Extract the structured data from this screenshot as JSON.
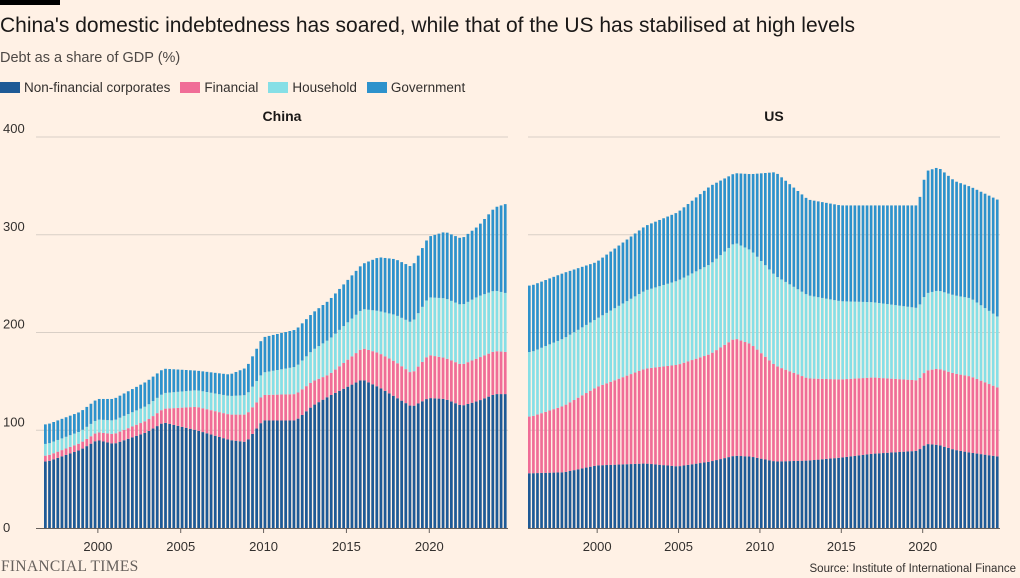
{
  "header": {
    "title": "China's domestic indebtedness has soared, while that of the US has stabilised at high levels",
    "subtitle": "Debt as a share of GDP (%)"
  },
  "legend": [
    {
      "label": "Non-financial corporates",
      "color": "#1e5a96"
    },
    {
      "label": "Financial",
      "color": "#f06d97"
    },
    {
      "label": "Household",
      "color": "#86dfe6"
    },
    {
      "label": "Government",
      "color": "#2d92cc"
    }
  ],
  "chart_data": [
    {
      "type": "bar",
      "stacked": true,
      "title": "China",
      "x_range": [
        1996.75,
        2024.75
      ],
      "ylim": [
        0,
        400
      ],
      "yticks": [
        0,
        100,
        200,
        300,
        400
      ],
      "xticks": [
        2000,
        2005,
        2010,
        2015,
        2020
      ],
      "grid": true,
      "series_order": [
        "Non-financial corporates",
        "Financial",
        "Household",
        "Government"
      ],
      "anchors": {
        "x": [
          1997,
          1999,
          2000,
          2001,
          2003,
          2004,
          2006,
          2008,
          2009,
          2010,
          2012,
          2013,
          2014,
          2016,
          2017,
          2018,
          2019,
          2020,
          2021,
          2022,
          2023,
          2024,
          2024.75
        ],
        "Non-financial corporates": [
          68,
          80,
          90,
          86,
          98,
          108,
          100,
          90,
          88,
          110,
          110,
          125,
          135,
          152,
          144,
          134,
          124,
          133,
          132,
          125,
          130,
          137,
          137
        ],
        "Financial": [
          6,
          7,
          8,
          10,
          12,
          14,
          24,
          26,
          28,
          26,
          27,
          25,
          22,
          32,
          35,
          36,
          34,
          44,
          42,
          42,
          44,
          44,
          43
        ],
        "Household": [
          12,
          12,
          13,
          14,
          15,
          16,
          17,
          19,
          20,
          23,
          28,
          32,
          36,
          40,
          43,
          48,
          52,
          59,
          61,
          61,
          63,
          62,
          60
        ],
        "Government": [
          20,
          20,
          21,
          22,
          25,
          25,
          20,
          22,
          28,
          36,
          38,
          38,
          40,
          46,
          55,
          57,
          57,
          62,
          68,
          68,
          72,
          85,
          92
        ]
      }
    },
    {
      "type": "bar",
      "stacked": true,
      "title": "US",
      "x_range": [
        1995.75,
        2024.75
      ],
      "ylim": [
        0,
        400
      ],
      "xticks": [
        2000,
        2005,
        2010,
        2015,
        2020
      ],
      "grid": true,
      "series_order": [
        "Non-financial corporates",
        "Financial",
        "Household",
        "Government"
      ],
      "anchors": {
        "x": [
          1996,
          1998,
          2000,
          2003,
          2005,
          2007,
          2008.5,
          2009.5,
          2011,
          2013,
          2015,
          2017,
          2019.75,
          2020.25,
          2021,
          2022,
          2023,
          2024.75
        ],
        "Non-financial corporates": [
          56,
          57,
          64,
          66,
          63,
          68,
          74,
          73,
          68,
          69,
          72,
          76,
          79,
          86,
          85,
          80,
          77,
          73
        ],
        "Financial": [
          58,
          68,
          80,
          97,
          104,
          110,
          120,
          115,
          98,
          84,
          80,
          78,
          72,
          75,
          78,
          78,
          78,
          70
        ],
        "Household": [
          66,
          69,
          70,
          80,
          86,
          92,
          98,
          96,
          92,
          85,
          80,
          77,
          74,
          79,
          80,
          80,
          80,
          72
        ],
        "Government": [
          68,
          67,
          58,
          66,
          70,
          80,
          71,
          78,
          106,
          98,
          98,
          99,
          105,
          125,
          126,
          117,
          114,
          120
        ]
      }
    }
  ],
  "footer": {
    "logo": "FINANCIAL TIMES",
    "source": "Source: Institute of International Finance"
  }
}
